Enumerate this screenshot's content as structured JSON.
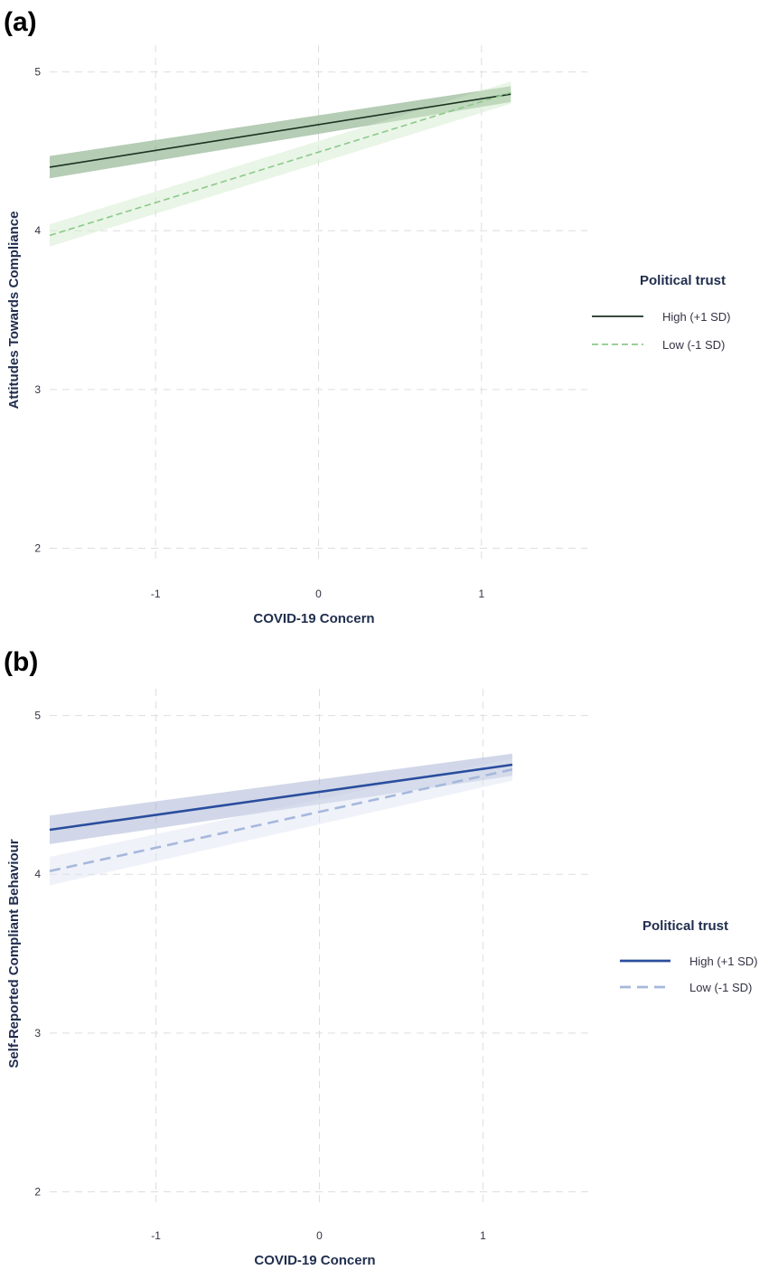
{
  "chart_data": [
    {
      "panel": "(a)",
      "type": "line",
      "xlabel": "COVID-19 Concern",
      "ylabel": "Attitudes Towards Compliance",
      "xlim": [
        -1.65,
        1.65
      ],
      "ylim": [
        1.9,
        5.1
      ],
      "x_ticks": [
        "-1",
        "0",
        "1"
      ],
      "y_ticks": [
        "2",
        "3",
        "4",
        "5"
      ],
      "grid": true,
      "legend": {
        "title": "Political trust",
        "placement": "right",
        "entries": [
          "High (+1 SD)",
          "Low (-1 SD)"
        ]
      },
      "series": [
        {
          "name": "High (+1 SD)",
          "style": "solid",
          "color": "#1b3320",
          "band_color": "#5a8f5c",
          "x": [
            -1.65,
            1.18
          ],
          "y": [
            4.4,
            4.86
          ],
          "ci_halfwidth": [
            0.07,
            0.05
          ]
        },
        {
          "name": "Low (-1 SD)",
          "style": "dashed",
          "color": "#8cc98b",
          "band_color": "#cfe8c8",
          "x": [
            -1.65,
            1.18
          ],
          "y": [
            3.97,
            4.87
          ],
          "ci_halfwidth": [
            0.07,
            0.07
          ]
        }
      ]
    },
    {
      "panel": "(b)",
      "type": "line",
      "xlabel": "COVID-19 Concern",
      "ylabel": "Self-Reported Compliant Behaviour",
      "xlim": [
        -1.65,
        1.65
      ],
      "ylim": [
        1.9,
        5.1
      ],
      "x_ticks": [
        "-1",
        "0",
        "1"
      ],
      "y_ticks": [
        "2",
        "3",
        "4",
        "5"
      ],
      "grid": true,
      "legend": {
        "title": "Political trust",
        "placement": "right",
        "entries": [
          "High (+1 SD)",
          "Low (-1 SD)"
        ]
      },
      "series": [
        {
          "name": "High (+1 SD)",
          "style": "solid",
          "color": "#2a4d9e",
          "band_color": "#9aa6cc",
          "x": [
            -1.65,
            1.18
          ],
          "y": [
            4.28,
            4.69
          ],
          "ci_halfwidth": [
            0.09,
            0.07
          ]
        },
        {
          "name": "Low (-1 SD)",
          "style": "dashed",
          "color": "#a6b8dc",
          "band_color": "#dbe2f2",
          "x": [
            -1.65,
            1.18
          ],
          "y": [
            4.02,
            4.66
          ],
          "ci_halfwidth": [
            0.09,
            0.07
          ]
        }
      ]
    }
  ]
}
